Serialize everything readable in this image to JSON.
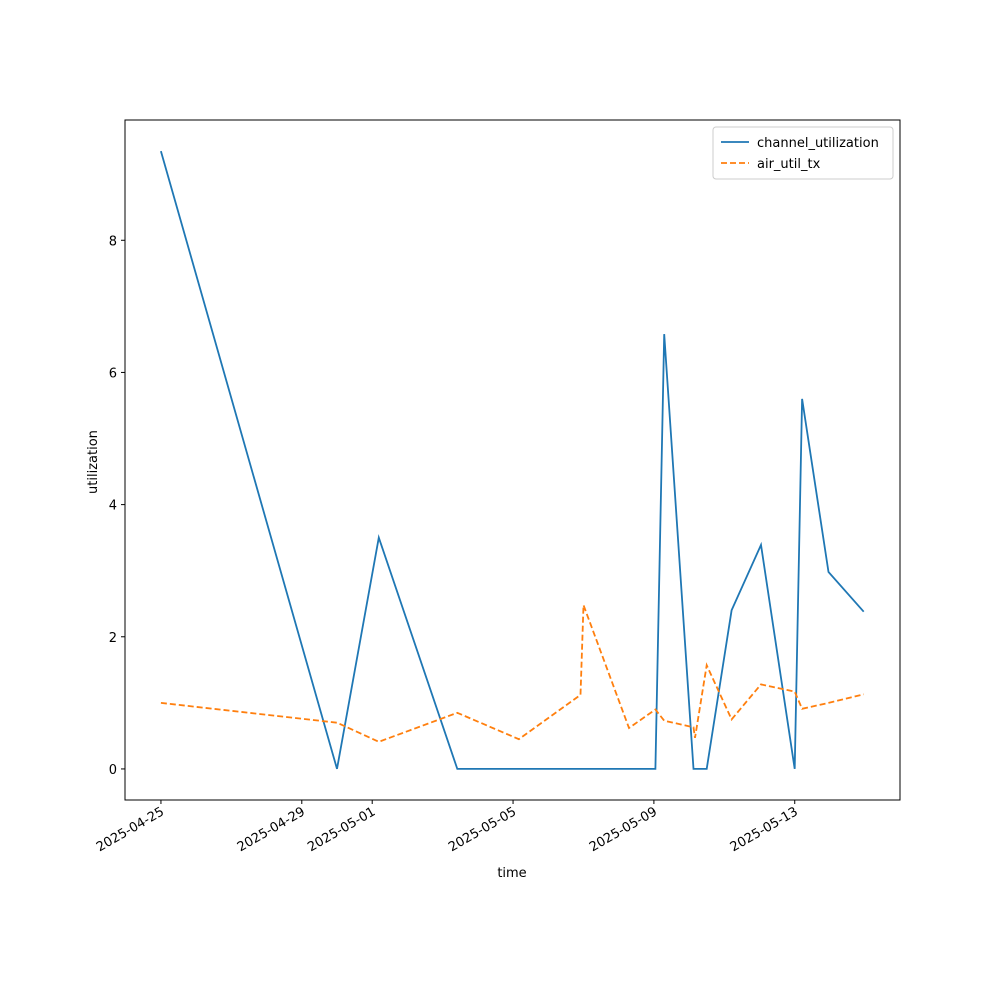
{
  "chart_data": {
    "type": "line",
    "x_label": "time",
    "y_label": "utilization",
    "x": [
      "2025-04-25T00:00",
      "2025-04-30T00:00",
      "2025-05-01T04:30",
      "2025-05-03T10:00",
      "2025-05-05T04:00",
      "2025-05-06T22:00",
      "2025-05-07T00:00",
      "2025-05-08T07:00",
      "2025-05-09T01:00",
      "2025-05-09T07:00",
      "2025-05-10T03:00",
      "2025-05-10T04:00",
      "2025-05-10T12:00",
      "2025-05-11T05:00",
      "2025-05-12T01:00",
      "2025-05-13T00:00",
      "2025-05-13T05:00",
      "2025-05-13T23:00",
      "2025-05-14T23:00"
    ],
    "series": [
      {
        "name": "channel_utilization",
        "color": "#1f77b4",
        "dash": "solid",
        "values": [
          9.35,
          0,
          3.5,
          0,
          0,
          0,
          0,
          0,
          0,
          6.58,
          0,
          0,
          0,
          2.4,
          3.39,
          0,
          5.6,
          2.98,
          2.38
        ]
      },
      {
        "name": "air_util_tx",
        "color": "#ff7f0e",
        "dash": "dashed",
        "values": [
          1.0,
          0.7,
          0.41,
          0.85,
          0.45,
          1.12,
          2.48,
          0.62,
          0.9,
          0.73,
          0.63,
          0.47,
          1.57,
          0.75,
          1.28,
          1.17,
          0.91,
          1.0,
          1.13
        ]
      }
    ],
    "xlim": [
      "2025-04-23T23:30",
      "2025-05-15T23:45"
    ],
    "xticks": [
      "2025-04-25",
      "2025-04-29",
      "2025-05-01",
      "2025-05-05",
      "2025-05-09",
      "2025-05-13"
    ],
    "ylim": [
      -0.47,
      9.82
    ],
    "yticks": [
      0,
      2,
      4,
      6,
      8
    ],
    "legend": "upper right",
    "grid": false
  }
}
